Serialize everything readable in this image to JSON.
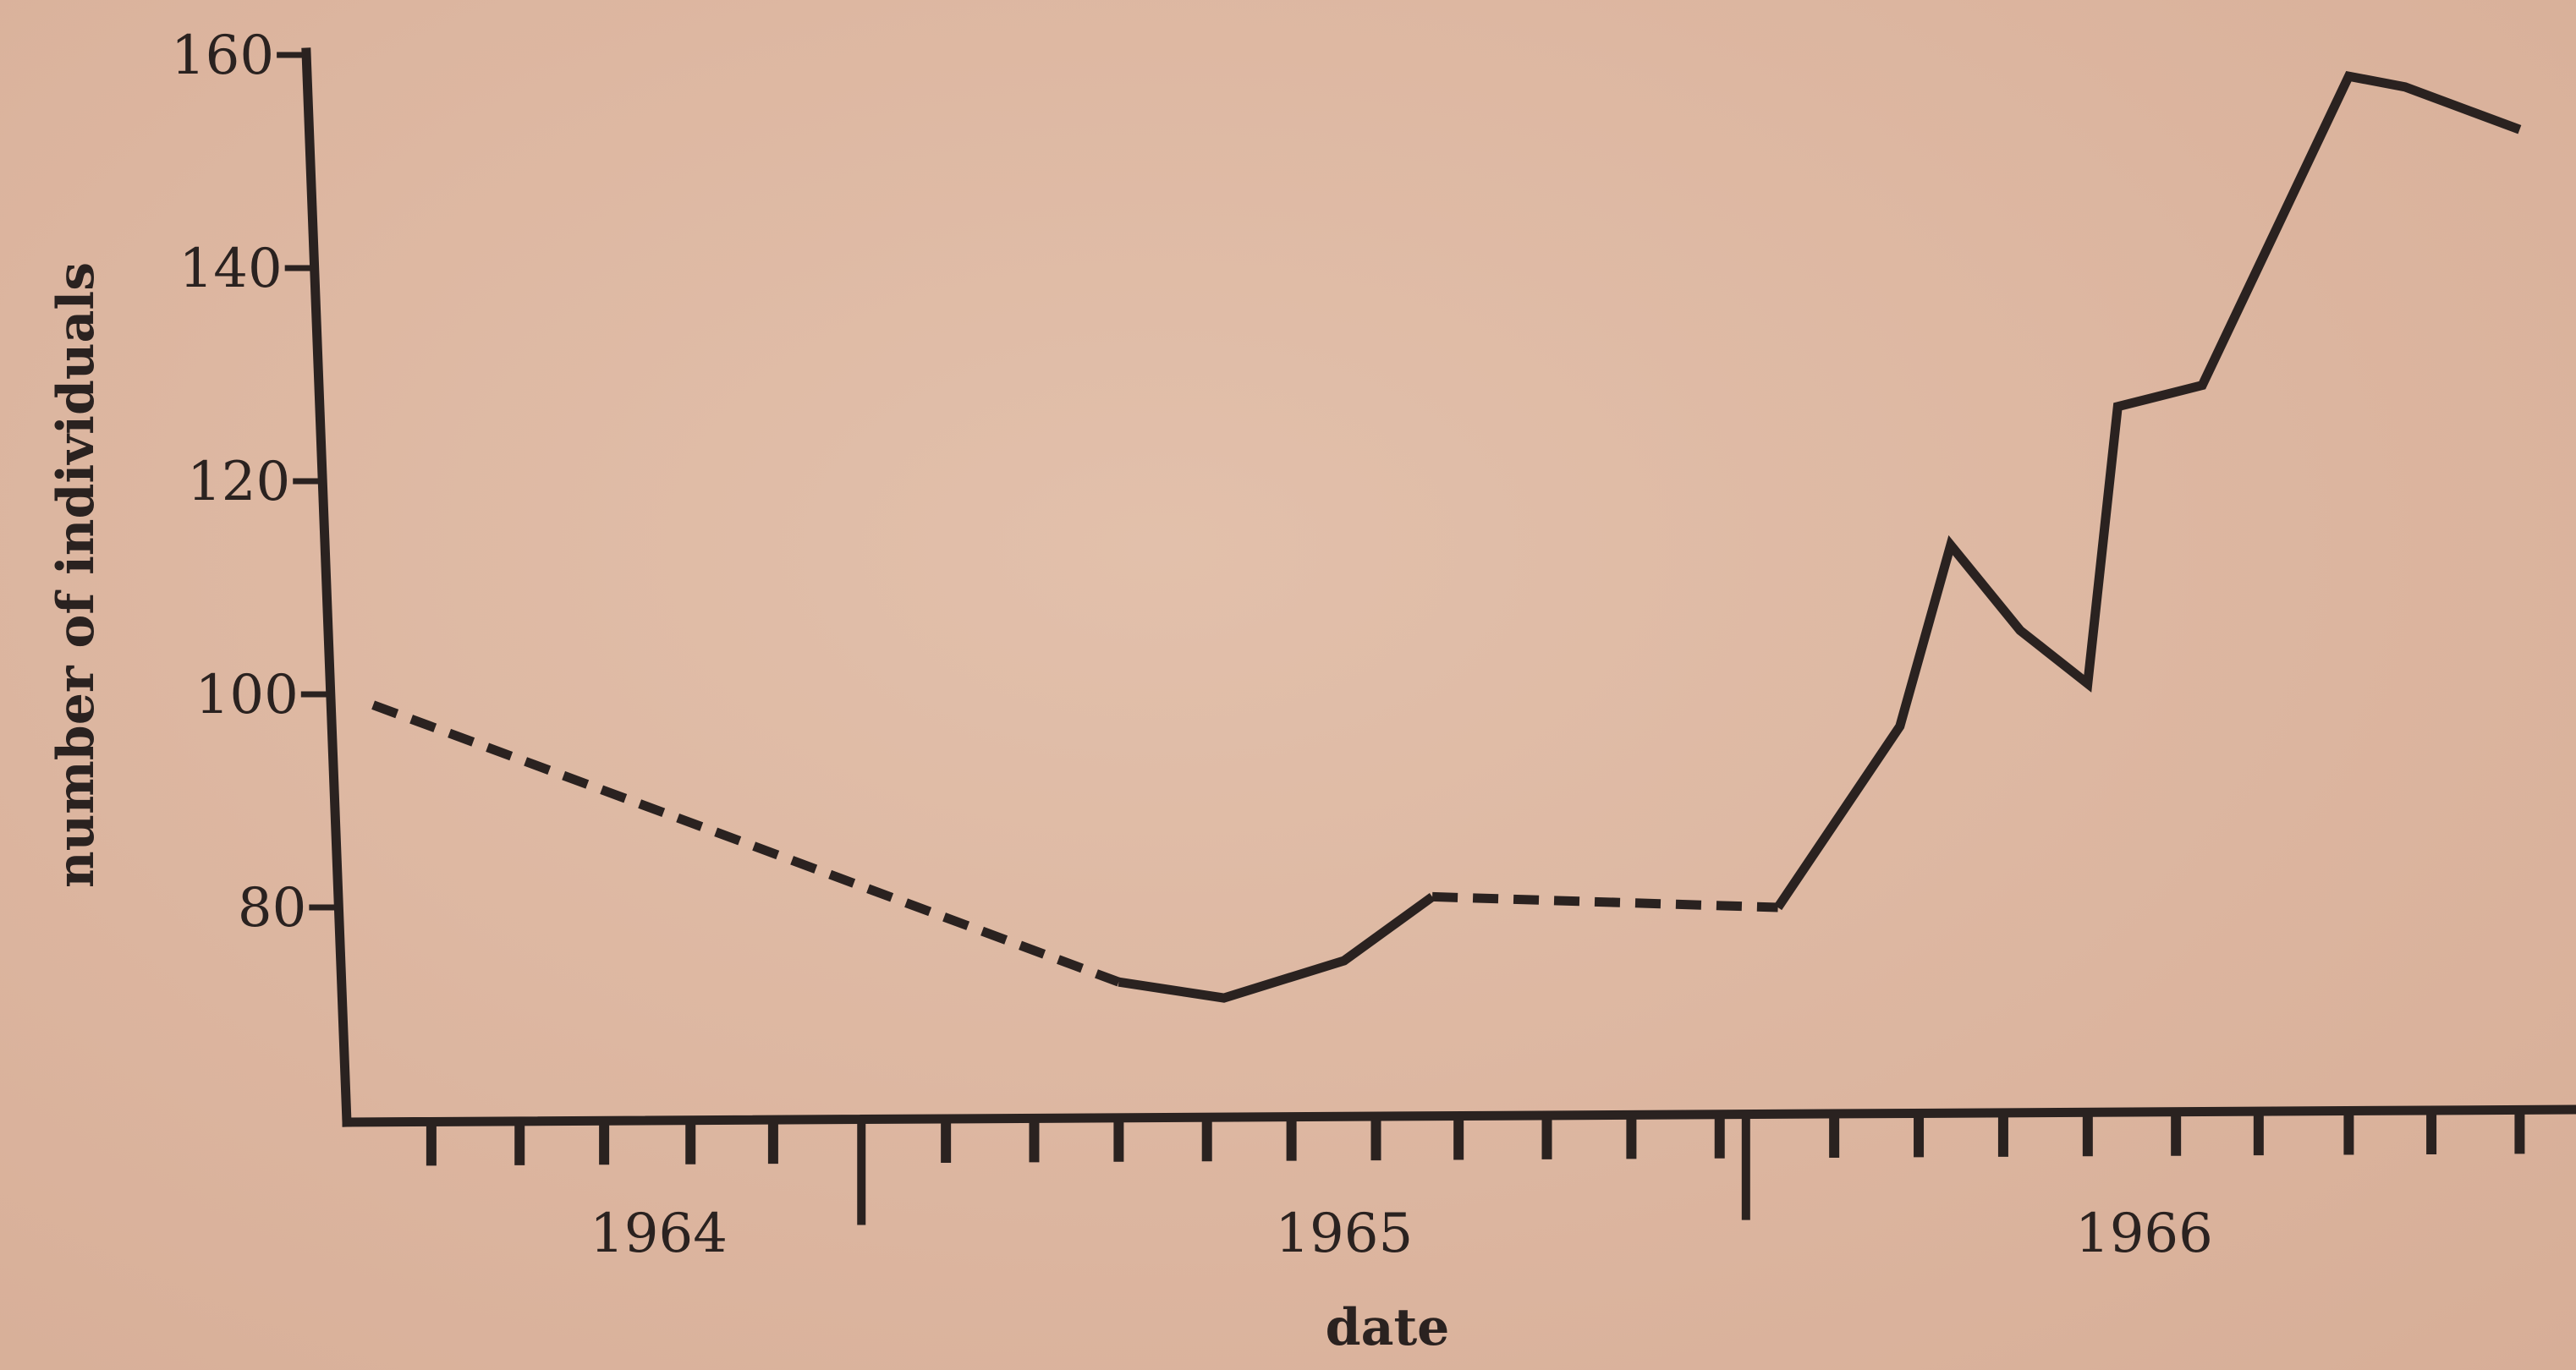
{
  "chart_data": {
    "type": "line",
    "title": "",
    "xlabel": "date",
    "ylabel": "number of individuals",
    "x_unit": "date",
    "xlim": [
      "1963-10-01",
      "1966-12-31"
    ],
    "ylim": [
      60,
      160
    ],
    "yticks": [
      80,
      100,
      120,
      140,
      160
    ],
    "xtick_labels": [
      "1964",
      "1965",
      "1966"
    ],
    "xtick_label_dates": [
      "1964-03-15",
      "1965-03-15",
      "1966-05-15"
    ],
    "year_boundaries": [
      "1964-07-01",
      "1965-10-15"
    ],
    "month_ticks": [
      "1963-11-15",
      "1964-01-01",
      "1964-02-15",
      "1964-04-01",
      "1964-05-15",
      "1964-08-15",
      "1964-10-01",
      "1964-11-15",
      "1965-01-01",
      "1965-02-15",
      "1965-04-01",
      "1965-05-15",
      "1965-07-01",
      "1965-08-15",
      "1965-10-01",
      "1965-12-01",
      "1966-01-15",
      "1966-03-01",
      "1966-04-15",
      "1966-06-01",
      "1966-07-15",
      "1966-09-01",
      "1966-10-15",
      "1966-12-01"
    ],
    "grid": false,
    "series": [
      {
        "style": "dashed",
        "points": [
          {
            "x": "1963-10-15",
            "y": 99
          },
          {
            "x": "1964-05-01",
            "y": 86
          },
          {
            "x": "1964-11-15",
            "y": 73
          }
        ]
      },
      {
        "style": "solid",
        "points": [
          {
            "x": "1964-11-15",
            "y": 73
          },
          {
            "x": "1965-01-10",
            "y": 71.5
          },
          {
            "x": "1965-03-15",
            "y": 75
          },
          {
            "x": "1965-05-01",
            "y": 81
          }
        ]
      },
      {
        "style": "dashed",
        "points": [
          {
            "x": "1965-05-01",
            "y": 81
          },
          {
            "x": "1965-11-01",
            "y": 80
          }
        ]
      },
      {
        "style": "solid",
        "points": [
          {
            "x": "1965-11-01",
            "y": 80
          },
          {
            "x": "1966-01-05",
            "y": 97
          },
          {
            "x": "1966-02-01",
            "y": 114
          },
          {
            "x": "1966-03-10",
            "y": 106
          },
          {
            "x": "1966-04-15",
            "y": 101
          },
          {
            "x": "1966-05-01",
            "y": 127
          },
          {
            "x": "1966-06-15",
            "y": 129
          },
          {
            "x": "1966-09-01",
            "y": 158
          },
          {
            "x": "1966-10-01",
            "y": 157
          },
          {
            "x": "1966-12-01",
            "y": 153
          }
        ]
      }
    ]
  },
  "colors": {
    "ink": "#2a2220",
    "background": "#deb8a2"
  }
}
